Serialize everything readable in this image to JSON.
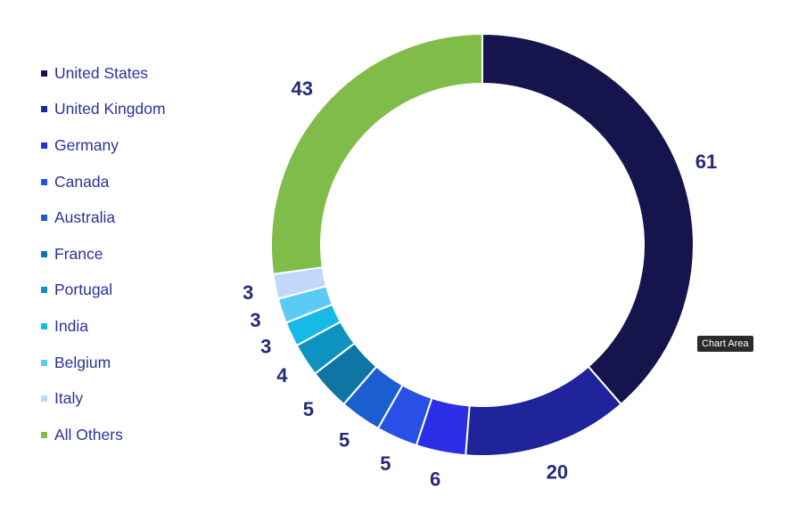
{
  "chart_data": {
    "type": "pie",
    "subtype": "donut",
    "legend_position": "left",
    "categories": [
      "United States",
      "United Kingdom",
      "Germany",
      "Canada",
      "Australia",
      "France",
      "Portugal",
      "India",
      "Belgium",
      "Italy",
      "All Others"
    ],
    "values": [
      61,
      20,
      6,
      5,
      5,
      5,
      4,
      3,
      3,
      3,
      43
    ],
    "colors": [
      "#15144d",
      "#1f249b",
      "#2b2ee6",
      "#2850e6",
      "#1a5ed0",
      "#0e75a5",
      "#0e92c0",
      "#18b9e6",
      "#5ccbf3",
      "#c2d8fa",
      "#80bc4a"
    ]
  },
  "tooltip": {
    "text": "Chart Area"
  }
}
